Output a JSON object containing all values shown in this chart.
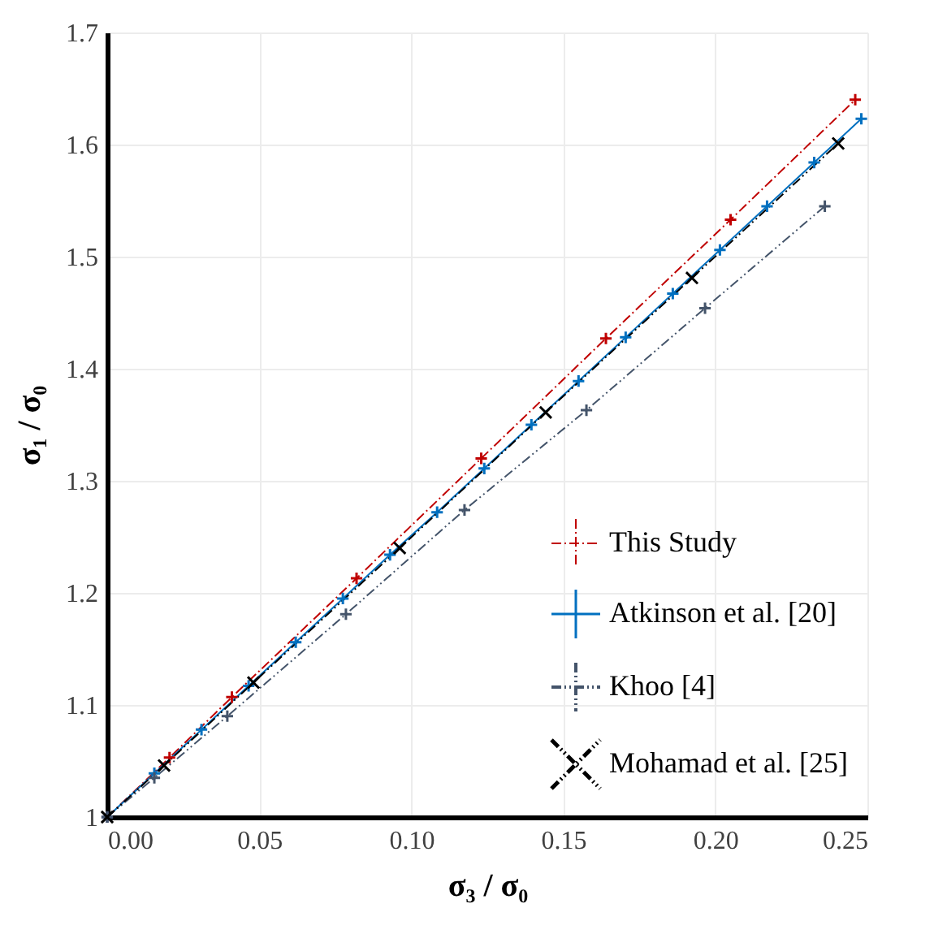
{
  "chart_data": {
    "type": "line",
    "xlabel": "σ₃ / σ₀",
    "ylabel": "σ₁ / σ₀",
    "xlim": [
      0,
      0.25
    ],
    "ylim": [
      1,
      1.7
    ],
    "xticks": [
      {
        "value": 0,
        "label": "0.00"
      },
      {
        "value": 0.05,
        "label": "0.05"
      },
      {
        "value": 0.1,
        "label": "0.10"
      },
      {
        "value": 0.15,
        "label": "0.15"
      },
      {
        "value": 0.2,
        "label": "0.20"
      },
      {
        "value": 0.25,
        "label": "0.25"
      }
    ],
    "yticks": [
      1,
      1.1,
      1.2,
      1.3,
      1.4,
      1.5,
      1.6,
      1.7
    ],
    "grid": true,
    "legend": "bottom right",
    "series": [
      {
        "name": "This Study",
        "color": "#c00000",
        "marker": "cross",
        "line_style": "dashdot",
        "x": [
          0,
          0.0205,
          0.041,
          0.082,
          0.123,
          0.164,
          0.205,
          0.246
        ],
        "values": [
          1,
          1.053,
          1.107,
          1.213,
          1.32,
          1.427,
          1.533,
          1.64
        ]
      },
      {
        "name": "Atkinson et al. [20]",
        "color": "#0070c0",
        "marker": "cross",
        "line_style": "solid",
        "x": [
          0,
          0.0155,
          0.031,
          0.0465,
          0.062,
          0.0775,
          0.093,
          0.1085,
          0.124,
          0.1395,
          0.155,
          0.1705,
          0.186,
          0.2015,
          0.217,
          0.2325,
          0.248
        ],
        "values": [
          1,
          1.039,
          1.078,
          1.117,
          1.156,
          1.195,
          1.234,
          1.272,
          1.311,
          1.35,
          1.389,
          1.428,
          1.467,
          1.506,
          1.545,
          1.584,
          1.623
        ]
      },
      {
        "name": "Khoo [4]",
        "color": "#44546a",
        "marker": "cross",
        "line_style": "dashdotdot",
        "x": [
          0,
          0.0155,
          0.0395,
          0.0785,
          0.1175,
          0.1576,
          0.1966,
          0.236
        ],
        "values": [
          1,
          1.035,
          1.09,
          1.181,
          1.274,
          1.363,
          1.454,
          1.545
        ]
      },
      {
        "name": "Mohamad et al. [25]",
        "color": "#000000",
        "marker": "x",
        "line_style": "dashdotdot",
        "x": [
          0,
          0.0187,
          0.0481,
          0.0962,
          0.1442,
          0.1923,
          0.2404
        ],
        "values": [
          1,
          1.046,
          1.12,
          1.24,
          1.361,
          1.481,
          1.601
        ]
      }
    ]
  }
}
